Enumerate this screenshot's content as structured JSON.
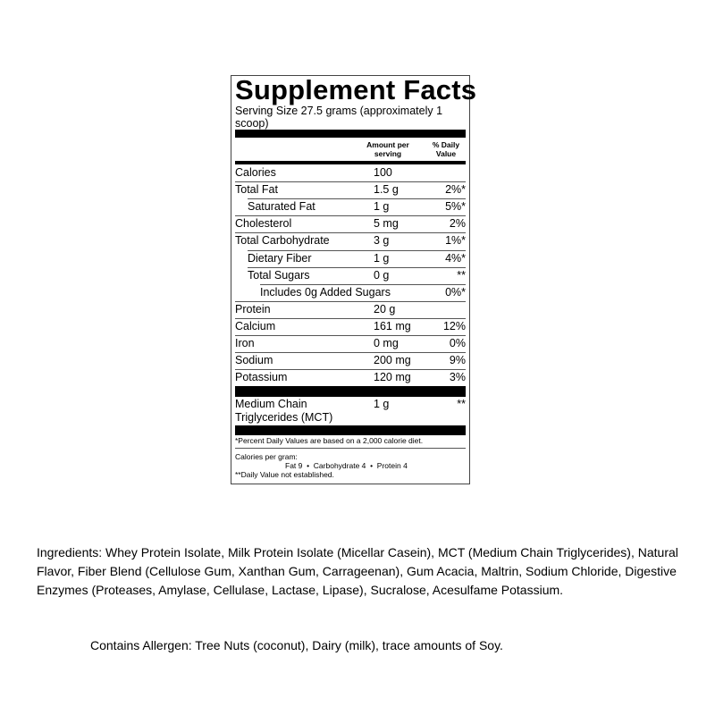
{
  "label": {
    "title": "Supplement Facts",
    "serving_size": "Serving Size 27.5 grams (approximately 1 scoop)",
    "col_amount": "Amount per serving",
    "col_dv": "% Daily Value",
    "rows": [
      {
        "name": "Calories",
        "amount": "100",
        "dv": "",
        "indent": 0
      },
      {
        "name": "Total Fat",
        "amount": "1.5 g",
        "dv": "2%*",
        "indent": 0
      },
      {
        "name": "Saturated Fat",
        "amount": "1 g",
        "dv": "5%*",
        "indent": 1
      },
      {
        "name": "Cholesterol",
        "amount": "5 mg",
        "dv": "2%",
        "indent": 0
      },
      {
        "name": "Total Carbohydrate",
        "amount": "3 g",
        "dv": "1%*",
        "indent": 0
      },
      {
        "name": "Dietary Fiber",
        "amount": "1 g",
        "dv": "4%*",
        "indent": 1
      },
      {
        "name": "Total Sugars",
        "amount": "0 g",
        "dv": "**",
        "indent": 1
      },
      {
        "name": "Includes 0g Added Sugars",
        "amount": "",
        "dv": "0%*",
        "indent": 2
      },
      {
        "name": "Protein",
        "amount": "20 g",
        "dv": "",
        "indent": 0
      },
      {
        "name": "Calcium",
        "amount": "161 mg",
        "dv": "12%",
        "indent": 0
      },
      {
        "name": "Iron",
        "amount": "0 mg",
        "dv": "0%",
        "indent": 0
      },
      {
        "name": "Sodium",
        "amount": "200 mg",
        "dv": "9%",
        "indent": 0
      },
      {
        "name": "Potassium",
        "amount": "120 mg",
        "dv": "3%",
        "indent": 0
      }
    ],
    "mct": {
      "name": "Medium Chain Triglycerides (MCT)",
      "amount": "1 g",
      "dv": "**"
    },
    "footnote_dv": "*Percent Daily Values are based on a 2,000 calorie diet.",
    "calories_per_gram": "Calories per gram:",
    "calories_breakdown": "Fat 9  •  Carbohydrate 4  •  Protein 4",
    "footnote_na": "**Daily Value not established."
  },
  "ingredients": "Ingredients: Whey Protein Isolate, Milk Protein Isolate (Micellar Casein), MCT (Medium Chain Triglycerides), Natural Flavor, Fiber Blend (Cellulose Gum, Xanthan Gum, Carrageenan), Gum Acacia, Maltrin, Sodium Chloride, Digestive Enzymes (Proteases, Amylase, Cellulase, Lactase, Lipase), Sucralose, Acesulfame Potassium.",
  "allergen": "Contains Allergen: Tree Nuts (coconut), Dairy (milk), trace amounts of Soy."
}
